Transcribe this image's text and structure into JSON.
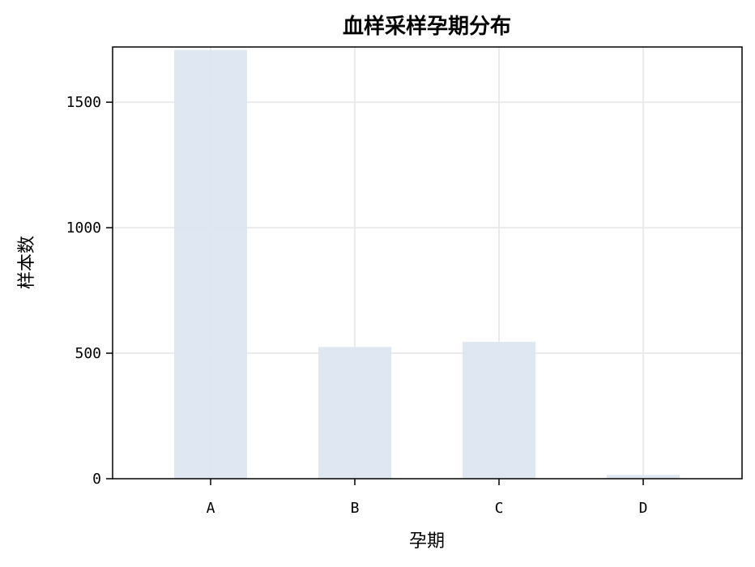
{
  "chart_data": {
    "type": "bar",
    "title": "血样采样孕期分布",
    "xlabel": "孕期",
    "ylabel": "样本数",
    "categories": [
      "A",
      "B",
      "C",
      "D"
    ],
    "values": [
      1708,
      525,
      545,
      15
    ],
    "yticks": [
      0,
      500,
      1000,
      1500
    ],
    "ylim": [
      0,
      1720
    ],
    "grid": true,
    "bar_color": "#dce6f1",
    "grid_color": "#ebebeb",
    "axis_color": "#000000"
  }
}
